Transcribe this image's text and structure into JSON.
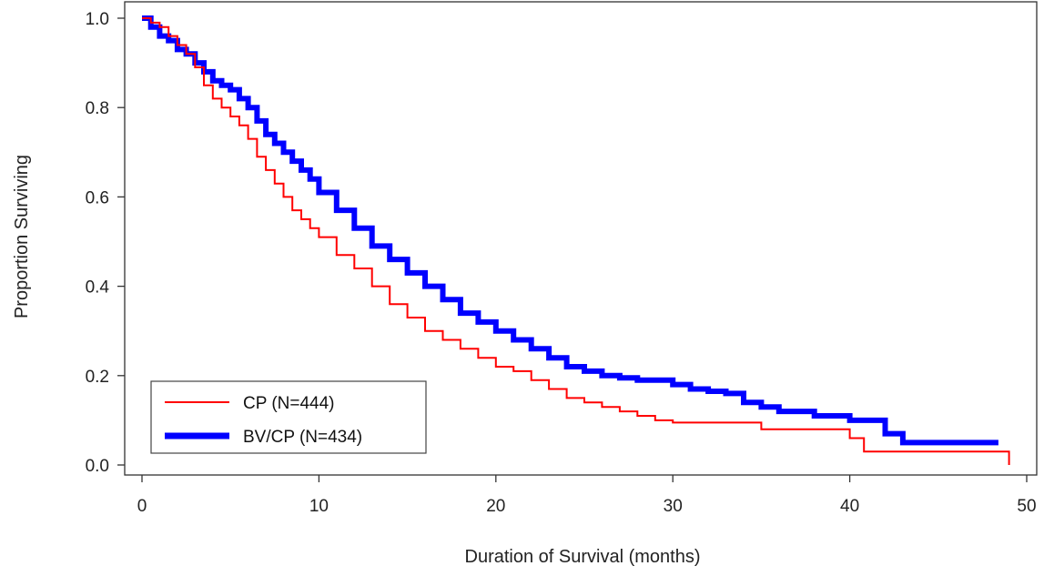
{
  "chart_data": {
    "type": "line",
    "title": "",
    "xlabel": "Duration of Survival (months)",
    "ylabel": "Proportion Surviving",
    "xlim": [
      0,
      50
    ],
    "ylim": [
      0,
      1
    ],
    "xticks": [
      0,
      10,
      20,
      30,
      40,
      50
    ],
    "xtick_labels": [
      "0",
      "10",
      "20",
      "30",
      "40",
      "50"
    ],
    "yticks": [
      0,
      0.2,
      0.4,
      0.6,
      0.8,
      1.0
    ],
    "ytick_labels": [
      "0.0",
      "0.2",
      "0.4",
      "0.6",
      "0.8",
      "1.0"
    ],
    "grid": false,
    "legend_position": "bottom-left",
    "step": true,
    "series": [
      {
        "name": "CP (N=444)",
        "color": "#ff0000",
        "style": "thin",
        "x": [
          0,
          0.5,
          1,
          1.5,
          2,
          2.5,
          3,
          3.5,
          4,
          4.5,
          5,
          5.5,
          6,
          6.5,
          7,
          7.5,
          8,
          8.5,
          9,
          9.5,
          10,
          11,
          12,
          13,
          14,
          15,
          16,
          17,
          18,
          19,
          20,
          21,
          22,
          23,
          24,
          25,
          26,
          27,
          28,
          29,
          30,
          35,
          40,
          40.8,
          49
        ],
        "y": [
          1.0,
          0.99,
          0.98,
          0.96,
          0.94,
          0.92,
          0.89,
          0.85,
          0.82,
          0.8,
          0.78,
          0.76,
          0.73,
          0.69,
          0.66,
          0.63,
          0.6,
          0.57,
          0.55,
          0.53,
          0.51,
          0.47,
          0.44,
          0.4,
          0.36,
          0.33,
          0.3,
          0.28,
          0.26,
          0.24,
          0.22,
          0.21,
          0.19,
          0.17,
          0.15,
          0.14,
          0.13,
          0.12,
          0.11,
          0.1,
          0.095,
          0.08,
          0.06,
          0.03,
          0.0
        ]
      },
      {
        "name": "BV/CP (N=434)",
        "color": "#0000ff",
        "style": "thick",
        "x": [
          0,
          0.5,
          1,
          1.5,
          2,
          2.5,
          3,
          3.5,
          4,
          4.5,
          5,
          5.5,
          6,
          6.5,
          7,
          7.5,
          8,
          8.5,
          9,
          9.5,
          10,
          11,
          12,
          13,
          14,
          15,
          16,
          17,
          18,
          19,
          20,
          21,
          22,
          23,
          24,
          25,
          26,
          27,
          28,
          29,
          30,
          31,
          32,
          33,
          34,
          35,
          36,
          38,
          40,
          42,
          43,
          48.4
        ],
        "y": [
          1.0,
          0.98,
          0.96,
          0.95,
          0.93,
          0.92,
          0.9,
          0.88,
          0.86,
          0.85,
          0.84,
          0.82,
          0.8,
          0.77,
          0.74,
          0.72,
          0.7,
          0.68,
          0.66,
          0.64,
          0.61,
          0.57,
          0.53,
          0.49,
          0.46,
          0.43,
          0.4,
          0.37,
          0.34,
          0.32,
          0.3,
          0.28,
          0.26,
          0.24,
          0.22,
          0.21,
          0.2,
          0.195,
          0.19,
          0.19,
          0.18,
          0.17,
          0.165,
          0.16,
          0.14,
          0.13,
          0.12,
          0.11,
          0.1,
          0.07,
          0.05,
          0.05
        ]
      }
    ]
  }
}
